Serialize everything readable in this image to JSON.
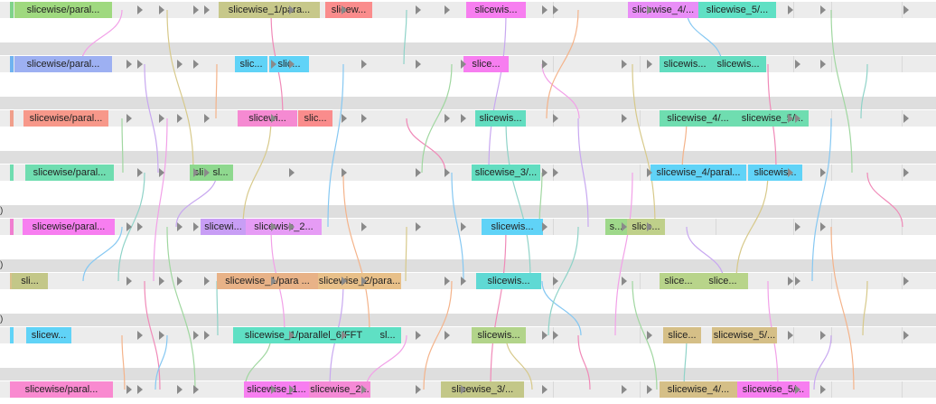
{
  "timeline": {
    "tracks": [
      {
        "slices": [
          {
            "label": "slicewise/paral...",
            "color": "#9fd97f"
          },
          {
            "label": "slicewise_1/para...",
            "color": "#c7c88a"
          },
          {
            "label": "slicew...",
            "color": "#fa8c8c"
          },
          {
            "label": "slicewis...",
            "color": "#f77ef0"
          },
          {
            "label": "slicewise_4/...",
            "color": "#e98ef7"
          },
          {
            "label": "slicewise_5/...",
            "color": "#5fe0c4"
          }
        ]
      },
      {
        "slices": [
          {
            "label": "slicewise/paral...",
            "color": "#9db0f2"
          },
          {
            "label": "slic...",
            "color": "#60d3f7"
          },
          {
            "label": "slic...",
            "color": "#60d3f7"
          },
          {
            "label": "slice...",
            "color": "#f77ef0"
          },
          {
            "label": "slicewis...",
            "color": "#62ddc0"
          },
          {
            "label": "slicewis...",
            "color": "#62ddc0"
          }
        ]
      },
      {
        "slices": [
          {
            "label": "slicewise/paral...",
            "color": "#f7988a"
          },
          {
            "label": "slicewi...",
            "color": "#f58ad2"
          },
          {
            "label": "slic...",
            "color": "#fa8c8c"
          },
          {
            "label": "slicewis...",
            "color": "#62ddc0"
          },
          {
            "label": "slicewise_4/...",
            "color": "#6fddb0"
          },
          {
            "label": "slicewise_5/...",
            "color": "#6fddb0"
          }
        ]
      },
      {
        "slices": [
          {
            "label": "slicewise/paral...",
            "color": "#6fddb0"
          },
          {
            "label": "sli",
            "color": "#8ed88e"
          },
          {
            "label": "sl...",
            "color": "#8ed88e"
          },
          {
            "label": "slicewise_3/...",
            "color": "#62ddc0"
          },
          {
            "label": "slicewise_4/paral...",
            "color": "#60d3f7"
          },
          {
            "label": "slicewis...",
            "color": "#60d3f7"
          }
        ]
      },
      {
        "slices": [
          {
            "label": "slicewise/paral...",
            "color": "#f77ef0"
          },
          {
            "label": "slicewi...",
            "color": "#c89ef5"
          },
          {
            "label": "slicewise_2...",
            "color": "#e69cf5"
          },
          {
            "label": "slicewis...",
            "color": "#60d3f7"
          },
          {
            "label": "s...",
            "color": "#9ed88a"
          },
          {
            "label": "slice...",
            "color": "#bfd08a"
          }
        ]
      },
      {
        "slices": [
          {
            "label": "sli...",
            "color": "#c3c788"
          },
          {
            "label": "slicewise_1/para ...",
            "color": "#e8b287"
          },
          {
            "label": "slicewise_2/para...",
            "color": "#e8c089"
          },
          {
            "label": "slicewis...",
            "color": "#5fd9d4"
          },
          {
            "label": "slice...",
            "color": "#b8d48a"
          },
          {
            "label": "slice...",
            "color": "#b8d48a"
          }
        ]
      },
      {
        "slices": [
          {
            "label": "slicew...",
            "color": "#60d3f7"
          },
          {
            "label": "slicewise_1/parallel_6/FFT",
            "color": "#5fe0c4"
          },
          {
            "label": "sl...",
            "color": "#5fe0c4"
          },
          {
            "label": "slicewis...",
            "color": "#b2d48a"
          },
          {
            "label": "slice...",
            "color": "#d5bf87"
          },
          {
            "label": "slicewise_5/...",
            "color": "#d5bf87"
          }
        ]
      },
      {
        "slices": [
          {
            "label": "slicewise/paral...",
            "color": "#f98ad0"
          },
          {
            "label": "slicewise_1...",
            "color": "#f77ef0"
          },
          {
            "label": "slicewise_2...",
            "color": "#f58ad6"
          },
          {
            "label": "slicewise_3/...",
            "color": "#c3c788"
          },
          {
            "label": "slicewise_4/...",
            "color": "#d5bf87"
          },
          {
            "label": "slicewise_5/...",
            "color": "#f77ef0"
          }
        ]
      }
    ],
    "track_labels": [
      ")",
      ")",
      ")"
    ]
  }
}
